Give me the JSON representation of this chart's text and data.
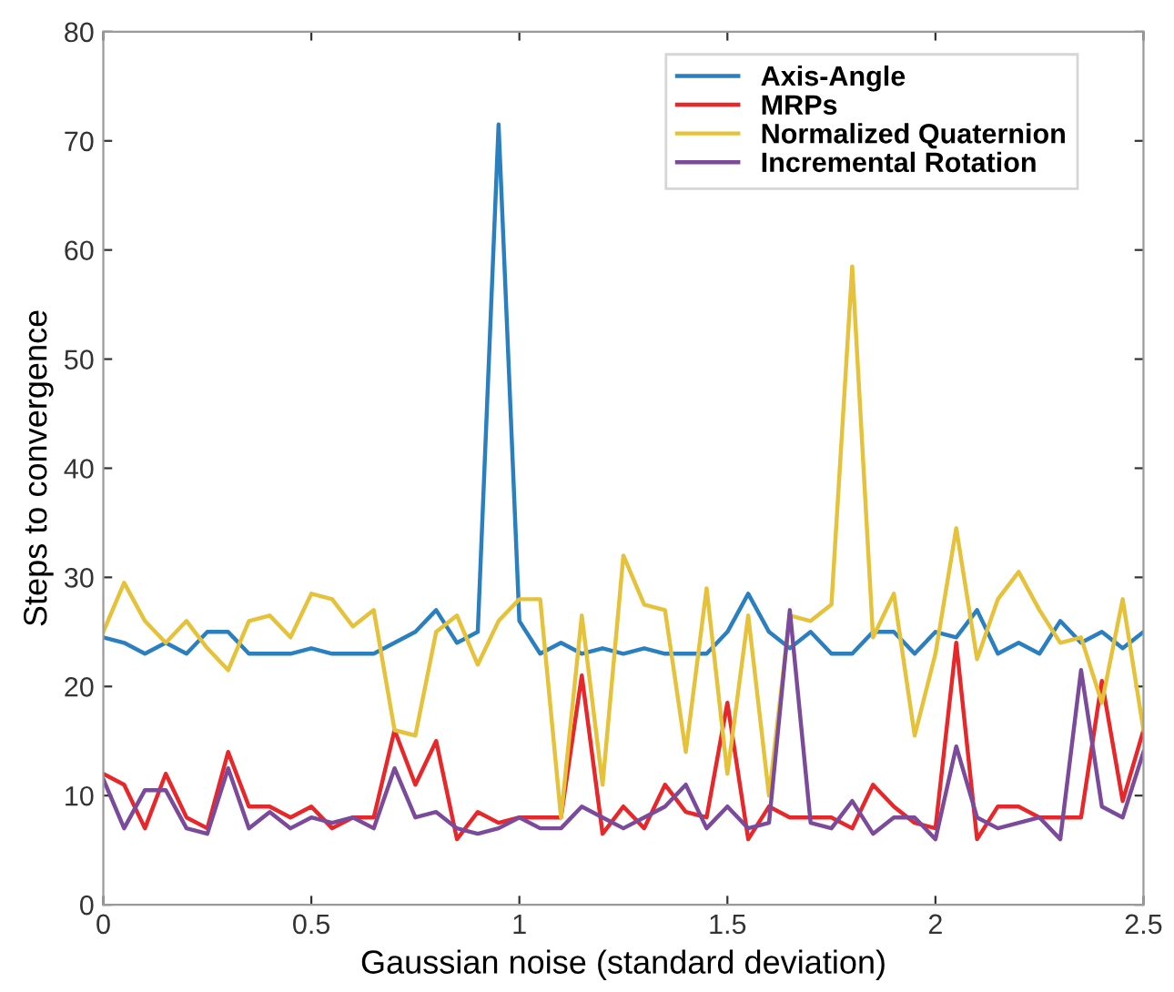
{
  "chart_data": {
    "type": "line",
    "xlabel": "Gaussian noise (standard deviation)",
    "ylabel": "Steps to convergence",
    "x": [
      0,
      0.05,
      0.1,
      0.15,
      0.2,
      0.25,
      0.3,
      0.35,
      0.4,
      0.45,
      0.5,
      0.55,
      0.6,
      0.65,
      0.7,
      0.75,
      0.8,
      0.85,
      0.9,
      0.95,
      1.0,
      1.05,
      1.1,
      1.15,
      1.2,
      1.25,
      1.3,
      1.35,
      1.4,
      1.45,
      1.5,
      1.55,
      1.6,
      1.65,
      1.7,
      1.75,
      1.8,
      1.85,
      1.9,
      1.95,
      2.0,
      2.05,
      2.1,
      2.15,
      2.2,
      2.25,
      2.3,
      2.35,
      2.4,
      2.45,
      2.5
    ],
    "series": [
      {
        "name": "Axis-Angle",
        "color": "#2a7fc0",
        "values": [
          24.5,
          24,
          23,
          24,
          23,
          25,
          25,
          23,
          23,
          23,
          23.5,
          23,
          23,
          23,
          24,
          25,
          27,
          24,
          25,
          71.5,
          26,
          23,
          24,
          23,
          23.5,
          23,
          23.5,
          23,
          23,
          23,
          25,
          28.5,
          25,
          23.5,
          25,
          23,
          23,
          25,
          25,
          23,
          25,
          24.5,
          27,
          23,
          24,
          23,
          26,
          24,
          25,
          23.5,
          25
        ]
      },
      {
        "name": "MRPs",
        "color": "#e8272a",
        "values": [
          12,
          11,
          7,
          12,
          8,
          7,
          14,
          9,
          9,
          8,
          9,
          7,
          8,
          8,
          16,
          11,
          15,
          6,
          8.5,
          7.5,
          8,
          8,
          8,
          21,
          6.5,
          9,
          7,
          11,
          8.5,
          8,
          18.5,
          6,
          9,
          8,
          8,
          8,
          7,
          11,
          9,
          7.5,
          7,
          24,
          6,
          9,
          9,
          8,
          8,
          8,
          20.5,
          9.5,
          16
        ]
      },
      {
        "name": "Normalized Quaternion",
        "color": "#e5c23a",
        "values": [
          25,
          29.5,
          26,
          24,
          26,
          23.5,
          21.5,
          26,
          26.5,
          24.5,
          28.5,
          28,
          25.5,
          27,
          16,
          15.5,
          25,
          26.5,
          22,
          26,
          28,
          28,
          8,
          26.5,
          11,
          32,
          27.5,
          27,
          14,
          29,
          12,
          26.5,
          10,
          26.5,
          26,
          27.5,
          58.5,
          24.5,
          28.5,
          15.5,
          23,
          34.5,
          22.5,
          28,
          30.5,
          27,
          24,
          24.5,
          18.5,
          28,
          16
        ]
      },
      {
        "name": "Incremental Rotation",
        "color": "#7b4a9a",
        "values": [
          11.5,
          7,
          10.5,
          10.5,
          7,
          6.5,
          12.5,
          7,
          8.5,
          7,
          8,
          7.5,
          8,
          7,
          12.5,
          8,
          8.5,
          7,
          6.5,
          7,
          8,
          7,
          7,
          9,
          8,
          7,
          8,
          9,
          11,
          7,
          9,
          7,
          7.5,
          27,
          7.5,
          7,
          9.5,
          6.5,
          8,
          8,
          6,
          14.5,
          8,
          7,
          7.5,
          8,
          6,
          21.5,
          9,
          8,
          14
        ]
      }
    ],
    "xlim": [
      0,
      2.5
    ],
    "xticks": [
      0,
      0.5,
      1,
      1.5,
      2,
      2.5
    ],
    "ylim": [
      0,
      80
    ],
    "yticks": [
      0,
      10,
      20,
      30,
      40,
      50,
      60,
      70,
      80
    ],
    "legend": "top right",
    "grid": false,
    "marker": "none",
    "line_style": "solid"
  }
}
